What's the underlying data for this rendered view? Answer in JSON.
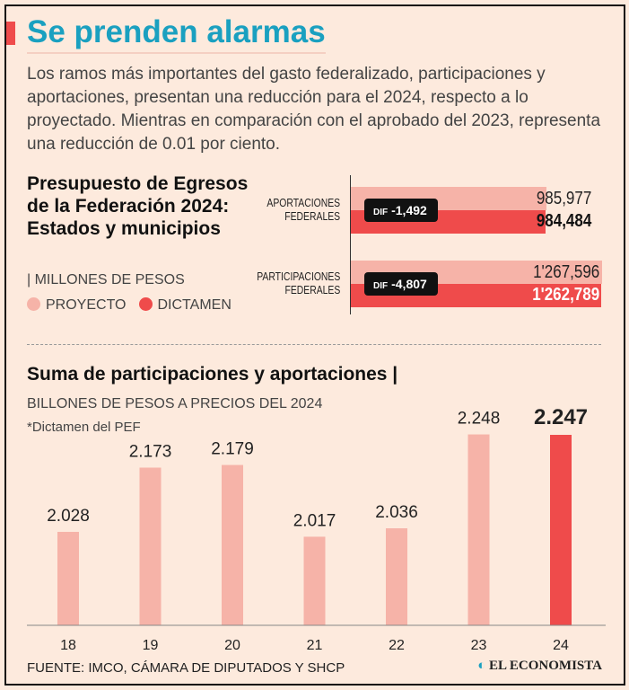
{
  "title": "Se prenden alarmas",
  "intro": "Los ramos más importantes del gasto federalizado, participaciones y aportaciones, presentan una reducción para el 2024, respecto a lo proyectado. Mientras en comparación con el aprobado del 2023, representa una reducción de 0.01 por ciento.",
  "colors": {
    "proyecto": "#f6b3a8",
    "dictamen": "#ef4b4b",
    "title": "#1aa0c0"
  },
  "chart_data": [
    {
      "type": "bar",
      "orientation": "horizontal",
      "title": "Presupuesto de Egresos de la Federación 2024: Estados y municipios",
      "units": "| MILLONES DE PESOS",
      "legend": [
        "PROYECTO",
        "DICTAMEN"
      ],
      "categories": [
        {
          "label1": "APORTACIONES",
          "label2": "FEDERALES",
          "proyecto": 985977,
          "dictamen": 984484,
          "proyecto_label": "985,977",
          "dictamen_label": "984,484",
          "dif": "-1,492"
        },
        {
          "label1": "PARTICIPACIONES",
          "label2": "FEDERALES",
          "proyecto": 1267596,
          "dictamen": 1262789,
          "proyecto_label": "1'267,596",
          "dictamen_label": "1'262,789",
          "dif": "-4,807"
        }
      ],
      "dif_prefix": "DIF"
    },
    {
      "type": "bar",
      "title": "Suma de participaciones y aportaciones |",
      "ylabel": "BILLONES DE PESOS A PRECIOS DEL 2024",
      "note": "*Dictamen del PEF",
      "categories": [
        "18",
        "19",
        "20",
        "21",
        "22",
        "23",
        "24"
      ],
      "values": [
        2.028,
        2.173,
        2.179,
        2.017,
        2.036,
        2.248,
        2.247
      ],
      "labels": [
        "2.028",
        "2.173",
        "2.179",
        "2.017",
        "2.036",
        "2.248",
        "2.247"
      ],
      "highlight": "24",
      "ylim": [
        1.817,
        2.3
      ]
    }
  ],
  "source": "FUENTE: IMCO, CÁMARA DE DIPUTADOS Y SHCP",
  "logo": "EL ECONOMISTA"
}
